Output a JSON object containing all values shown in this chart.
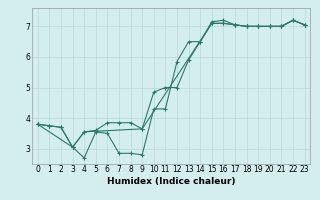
{
  "xlabel": "Humidex (Indice chaleur)",
  "bg_color": "#d4eeee",
  "grid_color": "#b8d8d8",
  "line_color": "#2a7a6a",
  "xlim": [
    -0.5,
    23.5
  ],
  "ylim": [
    2.5,
    7.6
  ],
  "xticks": [
    0,
    1,
    2,
    3,
    4,
    5,
    6,
    7,
    8,
    9,
    10,
    11,
    12,
    13,
    14,
    15,
    16,
    17,
    18,
    19,
    20,
    21,
    22,
    23
  ],
  "yticks": [
    3,
    4,
    5,
    6,
    7
  ],
  "series": [
    {
      "x": [
        0,
        1,
        2,
        3,
        4,
        5,
        6,
        7,
        8,
        9,
        10,
        11,
        12,
        13,
        14,
        15,
        16,
        17,
        18,
        19,
        20,
        21,
        22,
        23
      ],
      "y": [
        3.8,
        3.75,
        3.7,
        3.05,
        2.7,
        3.55,
        3.5,
        2.85,
        2.85,
        2.8,
        4.3,
        4.3,
        5.85,
        6.5,
        6.5,
        7.15,
        7.2,
        7.05,
        7.0,
        7.0,
        7.0,
        7.0,
        7.2,
        7.05
      ]
    },
    {
      "x": [
        0,
        1,
        2,
        3,
        4,
        5,
        6,
        7,
        8,
        9,
        10,
        11,
        12,
        13,
        14,
        15,
        16,
        17,
        18,
        19,
        20,
        21,
        22,
        23
      ],
      "y": [
        3.8,
        3.75,
        3.7,
        3.05,
        3.55,
        3.6,
        3.85,
        3.85,
        3.85,
        3.65,
        4.85,
        5.0,
        5.0,
        5.9,
        6.5,
        7.1,
        7.1,
        7.05,
        7.0,
        7.0,
        7.0,
        7.0,
        7.2,
        7.05
      ]
    },
    {
      "x": [
        0,
        3,
        4,
        9,
        15,
        16,
        17,
        18,
        19,
        20,
        21,
        22,
        23
      ],
      "y": [
        3.8,
        3.05,
        3.55,
        3.65,
        7.1,
        7.1,
        7.05,
        7.0,
        7.0,
        7.0,
        7.0,
        7.2,
        7.05
      ]
    }
  ]
}
